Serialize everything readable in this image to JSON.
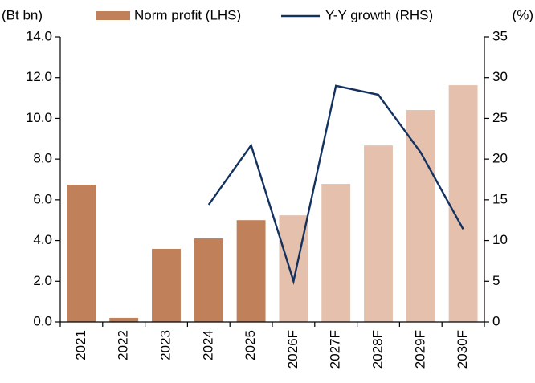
{
  "chart_data": {
    "type": "bar_line",
    "left_axis_label": "(Bt bn)",
    "right_axis_label": "(%)",
    "categories": [
      "2021",
      "2022",
      "2023",
      "2024",
      "2025",
      "2026F",
      "2027F",
      "2028F",
      "2029F",
      "2030F"
    ],
    "series": [
      {
        "name": "Norm profit (LHS)",
        "type": "bar",
        "axis": "y",
        "colors": [
          "#c0805a",
          "#c0805a",
          "#c0805a",
          "#c0805a",
          "#c0805a",
          "#e5c1ad",
          "#e5c1ad",
          "#e5c1ad",
          "#e5c1ad",
          "#e5c1ad"
        ],
        "values": [
          6.74,
          0.2,
          3.59,
          4.1,
          5.0,
          5.24,
          6.78,
          8.67,
          10.41,
          11.63
        ]
      },
      {
        "name": "Y-Y growth (RHS)",
        "type": "line",
        "axis": "y2",
        "color": "#14325f",
        "values": [
          null,
          null,
          null,
          14.4,
          21.7,
          5.0,
          29.0,
          27.9,
          20.8,
          11.4
        ]
      }
    ],
    "ylim": [
      0,
      14
    ],
    "yticks": [
      {
        "value": 0,
        "label": "0.0"
      },
      {
        "value": 2,
        "label": "2.0"
      },
      {
        "value": 4,
        "label": "4.0"
      },
      {
        "value": 6,
        "label": "6.0"
      },
      {
        "value": 8,
        "label": "8.0"
      },
      {
        "value": 10,
        "label": "10.0"
      },
      {
        "value": 12,
        "label": "12.0"
      },
      {
        "value": 14,
        "label": "14.0"
      }
    ],
    "y2lim": [
      0,
      35
    ],
    "y2ticks": [
      0,
      5,
      10,
      15,
      20,
      25,
      30,
      35
    ],
    "grid": false,
    "legend": "top"
  }
}
